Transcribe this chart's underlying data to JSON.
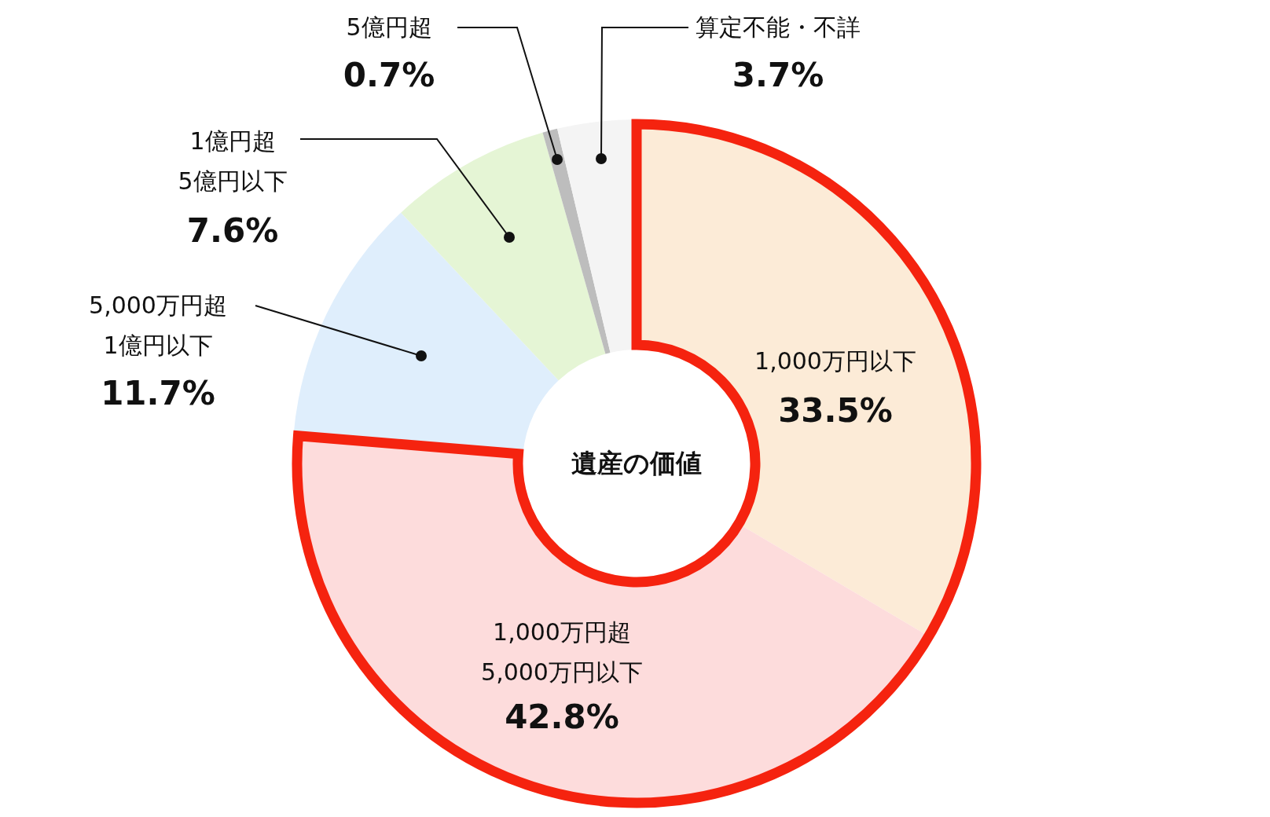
{
  "chart_data": {
    "type": "donut",
    "title": "遺産の価値",
    "categories": [
      "1,000万円以下",
      "1,000万円超\n5,000万円以下",
      "5,000万円超\n1億円以下",
      "1億円超\n5億円以下",
      "5億円超",
      "算定不能・不詳"
    ],
    "values": [
      33.5,
      42.8,
      11.7,
      7.6,
      0.7,
      3.7
    ],
    "colors": [
      "#fcebd7",
      "#fddcdc",
      "#dfeefc",
      "#e5f5d5",
      "#bdbdbd",
      "#f4f4f4"
    ],
    "value_labels": [
      "33.5%",
      "42.8%",
      "11.7%",
      "7.6%",
      "0.7%",
      "3.7%"
    ]
  }
}
